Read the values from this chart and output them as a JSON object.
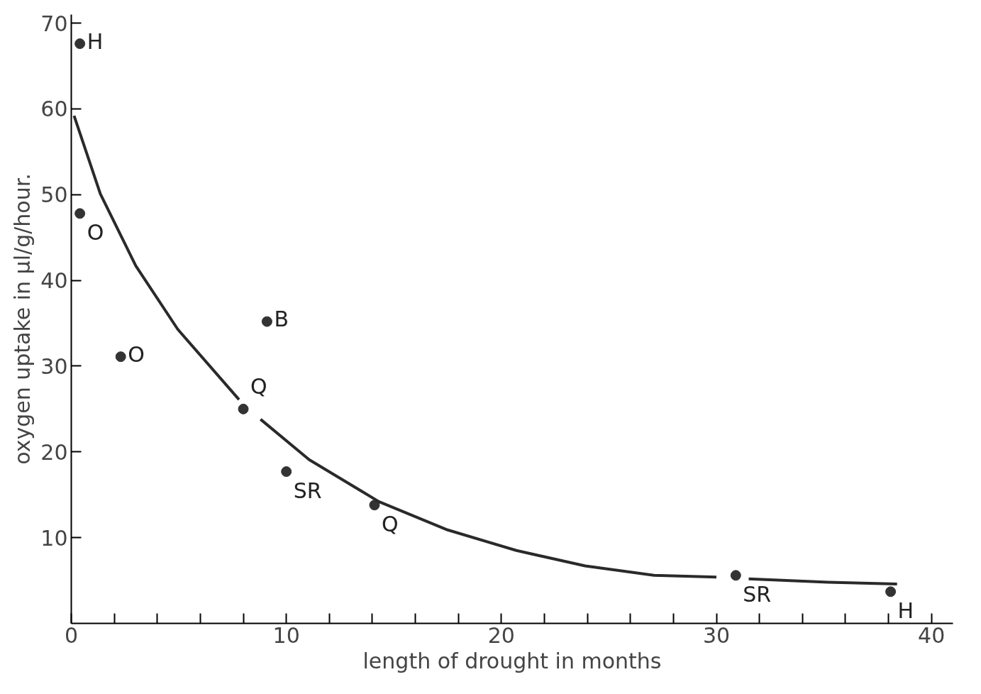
{
  "chart_data": {
    "type": "scatter",
    "xlabel": "length of drought in months",
    "ylabel": "oxygen uptake in µl/g/hour.",
    "xlim": [
      0,
      41
    ],
    "ylim": [
      0,
      71
    ],
    "xticks": [
      0,
      {
        "value": 2,
        "label": null
      },
      {
        "value": 4,
        "label": null
      },
      {
        "value": 6,
        "label": null
      },
      {
        "value": 8,
        "label": null
      },
      10,
      {
        "value": 12,
        "label": null
      },
      {
        "value": 14,
        "label": null
      },
      {
        "value": 16,
        "label": null
      },
      {
        "value": 18,
        "label": null
      },
      20,
      {
        "value": 22,
        "label": null
      },
      {
        "value": 24,
        "label": null
      },
      {
        "value": 26,
        "label": null
      },
      {
        "value": 28,
        "label": null
      },
      30,
      {
        "value": 32,
        "label": null
      },
      {
        "value": 34,
        "label": null
      },
      {
        "value": 36,
        "label": null
      },
      {
        "value": 38,
        "label": null
      },
      40
    ],
    "yticks": [
      10,
      20,
      30,
      40,
      50,
      60,
      70
    ],
    "grid": false,
    "series": [
      {
        "marker": "circle",
        "color": "#333333",
        "x": [
          0.4,
          0.4,
          2.3,
          9.1,
          8.0,
          10.0,
          14.1,
          30.9,
          38.1
        ],
        "values": [
          67.6,
          47.8,
          31.1,
          35.2,
          25.0,
          17.7,
          13.8,
          5.6,
          3.7
        ]
      },
      {
        "type": "line",
        "color": "#2a2a2a",
        "line_style": "solid",
        "x": [
          0.13,
          1.35,
          3.0,
          4.95,
          7.8,
          8.0,
          8.8,
          11.06,
          14.3,
          17.5,
          20.7,
          23.9,
          27.1,
          30.0,
          31.0,
          31.5,
          35.2,
          38.4
        ],
        "values": [
          59.2,
          50.1,
          41.7,
          34.3,
          26.1,
          null,
          23.8,
          19.1,
          14.2,
          10.9,
          8.5,
          6.7,
          5.6,
          5.4,
          null,
          5.2,
          4.8,
          4.6
        ]
      }
    ],
    "annotations": [
      {
        "text": "H",
        "x": 0.4,
        "y": 67.6
      },
      {
        "text": "O",
        "x": 0.4,
        "y": 47.8
      },
      {
        "text": "O",
        "x": 2.3,
        "y": 31.1
      },
      {
        "text": "B",
        "x": 9.1,
        "y": 35.2
      },
      {
        "text": "Q",
        "x": 8.0,
        "y": 25.0
      },
      {
        "text": "SR",
        "x": 10.0,
        "y": 17.7
      },
      {
        "text": "Q",
        "x": 14.1,
        "y": 13.8
      },
      {
        "text": "SR",
        "x": 30.9,
        "y": 5.6
      },
      {
        "text": "H",
        "x": 38.1,
        "y": 3.7
      }
    ]
  }
}
